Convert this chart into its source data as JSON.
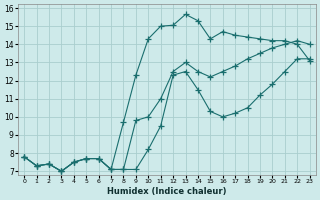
{
  "background_color": "#ceeaea",
  "grid_color": "#aacece",
  "line_color": "#1a6e6e",
  "xlim": [
    -0.5,
    23.5
  ],
  "ylim": [
    6.8,
    16.2
  ],
  "xtick_labels": [
    "0",
    "1",
    "2",
    "3",
    "4",
    "5",
    "6",
    "7",
    "8",
    "9",
    "10",
    "11",
    "12",
    "13",
    "14",
    "15",
    "16",
    "17",
    "18",
    "19",
    "20",
    "21",
    "22",
    "23"
  ],
  "ytick_vals": [
    7,
    8,
    9,
    10,
    11,
    12,
    13,
    14,
    15,
    16
  ],
  "xlabel": "Humidex (Indice chaleur)",
  "line1_x": [
    0,
    1,
    2,
    3,
    4,
    5,
    6,
    7,
    8,
    9,
    10,
    11,
    12,
    13,
    14,
    15,
    16,
    17,
    18,
    19,
    20,
    21,
    22,
    23
  ],
  "line1_y": [
    7.8,
    7.3,
    7.4,
    7.0,
    7.5,
    7.7,
    7.7,
    7.1,
    9.7,
    12.3,
    14.3,
    15.0,
    15.05,
    15.65,
    15.3,
    14.3,
    14.7,
    14.5,
    14.4,
    14.3,
    14.2,
    14.2,
    14.0,
    13.1
  ],
  "line2_x": [
    0,
    1,
    2,
    3,
    4,
    5,
    6,
    7,
    8,
    9,
    10,
    11,
    12,
    13,
    14,
    15,
    16,
    17,
    18,
    19,
    20,
    21,
    22,
    23
  ],
  "line2_y": [
    7.8,
    7.3,
    7.4,
    7.0,
    7.5,
    7.7,
    7.7,
    7.1,
    7.1,
    7.1,
    8.2,
    9.5,
    12.3,
    12.5,
    11.5,
    10.3,
    10.0,
    10.2,
    10.5,
    11.2,
    11.8,
    12.5,
    13.2,
    13.2
  ],
  "line3_x": [
    0,
    1,
    2,
    3,
    4,
    5,
    6,
    7,
    8,
    9,
    10,
    11,
    12,
    13,
    14,
    15,
    16,
    17,
    18,
    19,
    20,
    21,
    22,
    23
  ],
  "line3_y": [
    7.8,
    7.3,
    7.4,
    7.0,
    7.5,
    7.7,
    7.7,
    7.1,
    7.1,
    9.8,
    10.0,
    11.0,
    12.5,
    13.0,
    12.5,
    12.2,
    12.5,
    12.8,
    13.2,
    13.5,
    13.8,
    14.0,
    14.2,
    14.0
  ]
}
